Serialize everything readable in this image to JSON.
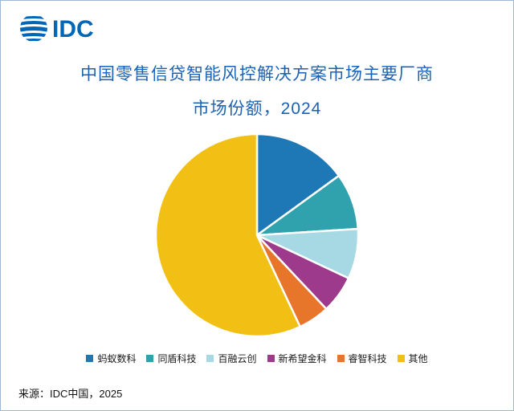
{
  "header": {
    "logo_text": "IDC"
  },
  "footer": {
    "source": "来源：IDC中国，2025"
  },
  "colors": {
    "title_text": "#1b62b5",
    "logo_blue": "#0067b8",
    "frame_border": "#9db9d9"
  },
  "chart_data": {
    "type": "pie",
    "title": "中国零售信贷智能风控解决方案市场主要厂商",
    "subtitle": "市场份额，2024",
    "legend_position": "bottom",
    "start_angle_deg": 0,
    "direction": "clockwise",
    "unit": "% (estimated from slice angles)",
    "slices": [
      {
        "label": "蚂蚁数科",
        "value": 15,
        "color": "#1f78b6"
      },
      {
        "label": "同盾科技",
        "value": 9,
        "color": "#2fa2ae"
      },
      {
        "label": "百融云创",
        "value": 8,
        "color": "#a6d9e3"
      },
      {
        "label": "新希望金科",
        "value": 6,
        "color": "#9e3a8c"
      },
      {
        "label": "睿智科技",
        "value": 5,
        "color": "#e8762a"
      },
      {
        "label": "其他",
        "value": 57,
        "color": "#f2c014"
      }
    ]
  }
}
